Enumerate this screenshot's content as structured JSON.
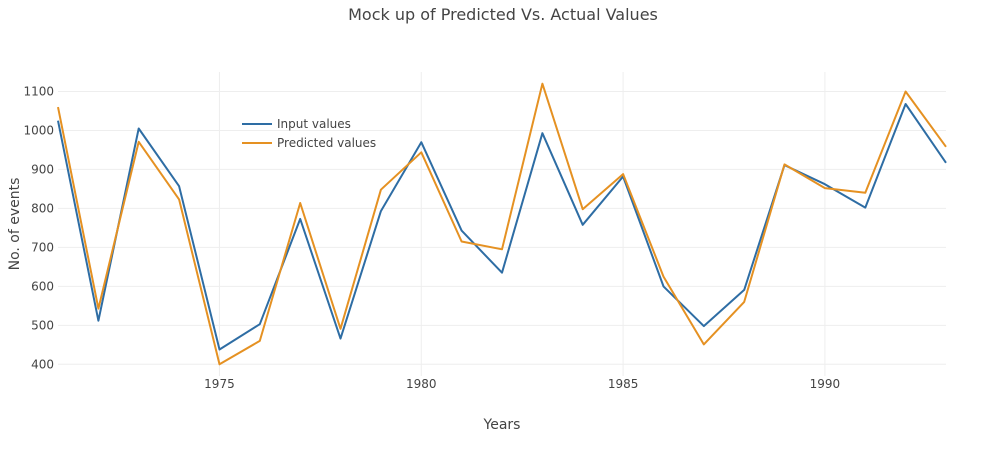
{
  "chart_data": {
    "type": "line",
    "title": "Mock up of Predicted Vs. Actual Values",
    "xlabel": "Years",
    "ylabel": "No. of events",
    "xlim": [
      1971,
      1993
    ],
    "ylim": [
      370,
      1150
    ],
    "x_ticks": [
      1975,
      1980,
      1985,
      1990
    ],
    "y_ticks": [
      400,
      500,
      600,
      700,
      800,
      900,
      1000,
      1100
    ],
    "grid": true,
    "legend_position": "top-left",
    "x": [
      1971,
      1972,
      1973,
      1974,
      1975,
      1976,
      1977,
      1978,
      1979,
      1980,
      1981,
      1982,
      1983,
      1984,
      1985,
      1986,
      1987,
      1988,
      1989,
      1990,
      1991,
      1992,
      1993
    ],
    "series": [
      {
        "name": "Input values",
        "color": "#2e6da4",
        "values": [
          1025,
          512,
          1005,
          857,
          438,
          503,
          773,
          466,
          793,
          970,
          743,
          635,
          993,
          758,
          882,
          600,
          498,
          591,
          911,
          862,
          802,
          1068,
          917
        ]
      },
      {
        "name": "Predicted values",
        "color": "#e59122",
        "values": [
          1060,
          543,
          971,
          823,
          400,
          460,
          814,
          491,
          848,
          944,
          715,
          695,
          1120,
          798,
          888,
          625,
          451,
          560,
          913,
          852,
          840,
          1100,
          958
        ]
      }
    ]
  }
}
